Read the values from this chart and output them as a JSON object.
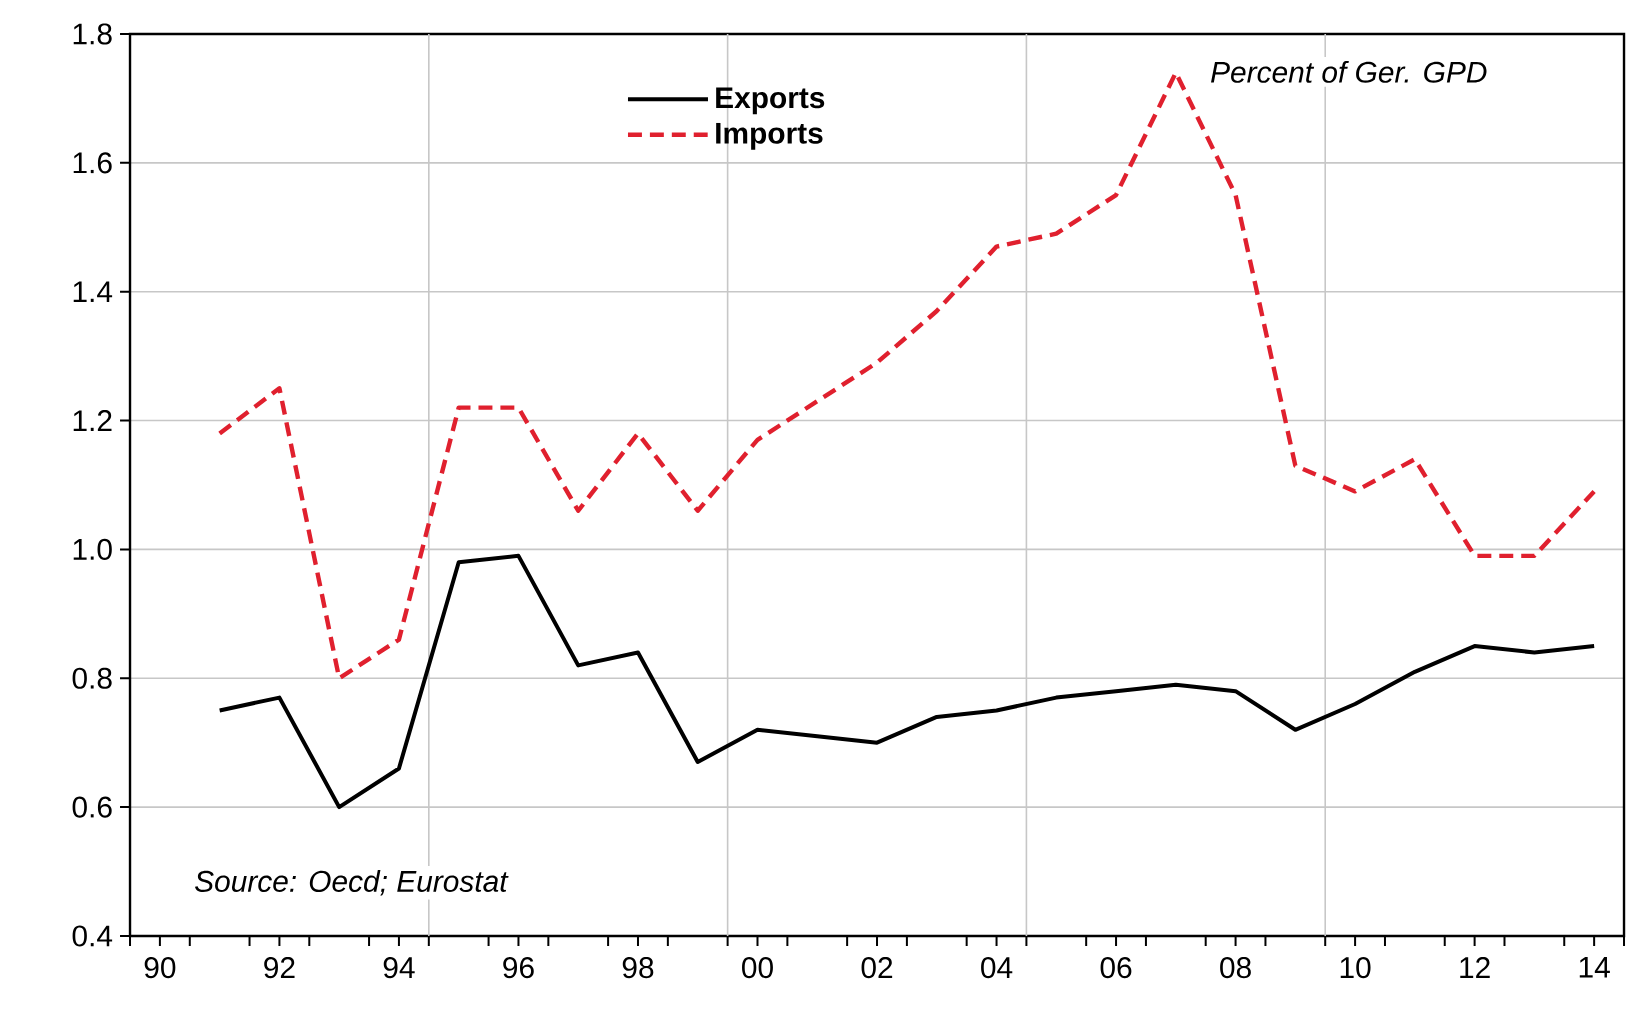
{
  "chart_data": {
    "type": "line",
    "x": [
      1991,
      1992,
      1993,
      1994,
      1995,
      1996,
      1997,
      1998,
      1999,
      2000,
      2001,
      2002,
      2003,
      2004,
      2005,
      2006,
      2007,
      2008,
      2009,
      2010,
      2011,
      2012,
      2013,
      2014
    ],
    "series": [
      {
        "name": "Exports",
        "color": "#000000",
        "line_style": "solid",
        "values": [
          0.75,
          0.77,
          0.6,
          0.66,
          0.98,
          0.99,
          0.82,
          0.84,
          0.67,
          0.72,
          0.71,
          0.7,
          0.74,
          0.75,
          0.77,
          0.78,
          0.79,
          0.78,
          0.72,
          0.76,
          0.81,
          0.85,
          0.84,
          0.85
        ]
      },
      {
        "name": "Imports",
        "color": "#e0202e",
        "line_style": "dashed",
        "values": [
          1.18,
          1.25,
          0.8,
          0.86,
          1.22,
          1.22,
          1.06,
          1.18,
          1.06,
          1.17,
          1.23,
          1.29,
          1.37,
          1.47,
          1.49,
          1.55,
          1.74,
          1.55,
          1.13,
          1.09,
          1.14,
          0.99,
          0.99,
          1.09
        ]
      }
    ],
    "xlim": [
      1989.5,
      2014.5
    ],
    "xticks": [
      {
        "value": 1990,
        "label": "90"
      },
      {
        "value": 1992,
        "label": "92"
      },
      {
        "value": 1994,
        "label": "94"
      },
      {
        "value": 1996,
        "label": "96"
      },
      {
        "value": 1998,
        "label": "98"
      },
      {
        "value": 2000,
        "label": "00"
      },
      {
        "value": 2002,
        "label": "02"
      },
      {
        "value": 2004,
        "label": "04"
      },
      {
        "value": 2006,
        "label": "06"
      },
      {
        "value": 2008,
        "label": "08"
      },
      {
        "value": 2010,
        "label": "10"
      },
      {
        "value": 2012,
        "label": "12"
      },
      {
        "value": 2014,
        "label": "14"
      },
      {
        "value": 1989.5,
        "label": null
      },
      {
        "value": 1990.5,
        "label": null
      },
      {
        "value": 1991.5,
        "label": null
      },
      {
        "value": 1992.5,
        "label": null
      },
      {
        "value": 1993.5,
        "label": null
      },
      {
        "value": 1994.5,
        "label": null
      },
      {
        "value": 1995.5,
        "label": null
      },
      {
        "value": 1996.5,
        "label": null
      },
      {
        "value": 1997.5,
        "label": null
      },
      {
        "value": 1998.5,
        "label": null
      },
      {
        "value": 1999.5,
        "label": null
      },
      {
        "value": 2000.5,
        "label": null
      },
      {
        "value": 2001.5,
        "label": null
      },
      {
        "value": 2002.5,
        "label": null
      },
      {
        "value": 2003.5,
        "label": null
      },
      {
        "value": 2004.5,
        "label": null
      },
      {
        "value": 2005.5,
        "label": null
      },
      {
        "value": 2006.5,
        "label": null
      },
      {
        "value": 2007.5,
        "label": null
      },
      {
        "value": 2008.5,
        "label": null
      },
      {
        "value": 2009.5,
        "label": null
      },
      {
        "value": 2010.5,
        "label": null
      },
      {
        "value": 2011.5,
        "label": null
      },
      {
        "value": 2012.5,
        "label": null
      },
      {
        "value": 2013.5,
        "label": null
      },
      {
        "value": 2014.5,
        "label": null
      }
    ],
    "ylim": [
      0.4,
      1.8
    ],
    "yticks": [
      0.4,
      0.6,
      0.8,
      {
        "value": 1,
        "label": "1.0"
      },
      1.2,
      1.4,
      1.6,
      1.8
    ],
    "grid": true,
    "legend": "top",
    "annotations": [
      "Percent of Ger. GPD",
      "Source: Oecd; Eurostat"
    ]
  }
}
